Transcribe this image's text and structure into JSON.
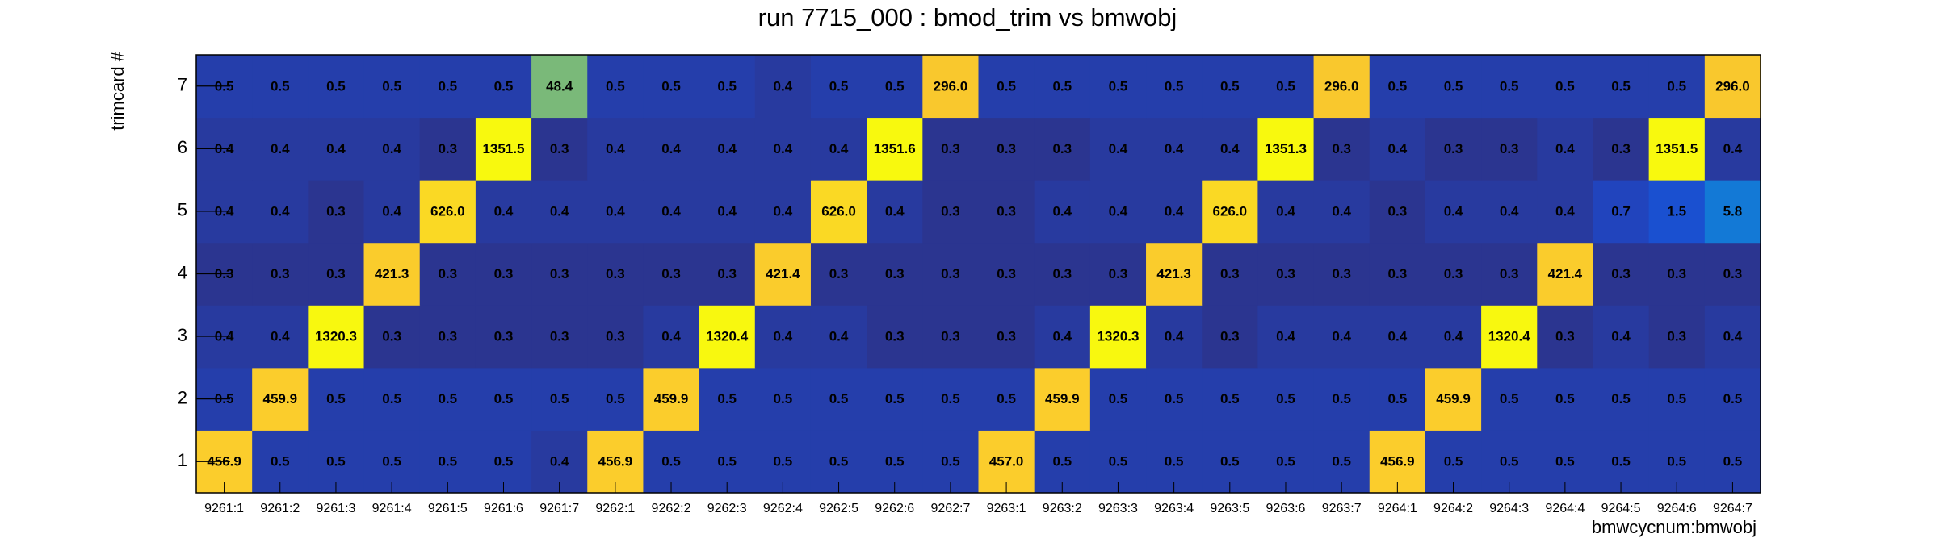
{
  "chart_data": {
    "type": "heatmap",
    "title": "run 7715_000 : bmod_trim vs bmwobj",
    "x_label": "bmwcycnum:bmwobj",
    "y_label": "trimcard #",
    "categories": [
      "9261:1",
      "9261:2",
      "9261:3",
      "9261:4",
      "9261:5",
      "9261:6",
      "9261:7",
      "9262:1",
      "9262:2",
      "9262:3",
      "9262:4",
      "9262:5",
      "9262:6",
      "9262:7",
      "9263:1",
      "9263:2",
      "9263:3",
      "9263:4",
      "9263:5",
      "9263:6",
      "9263:7",
      "9264:1",
      "9264:2",
      "9264:3",
      "9264:4",
      "9264:5",
      "9264:6",
      "9264:7"
    ],
    "y_categories": [
      "1",
      "2",
      "3",
      "4",
      "5",
      "6",
      "7"
    ],
    "values": [
      [
        456.9,
        0.5,
        0.5,
        0.5,
        0.5,
        0.5,
        0.4,
        456.9,
        0.5,
        0.5,
        0.5,
        0.5,
        0.5,
        0.5,
        457,
        0.5,
        0.5,
        0.5,
        0.5,
        0.5,
        0.5,
        456.9,
        0.5,
        0.5,
        0.5,
        0.5,
        0.5,
        0.5
      ],
      [
        0.5,
        459.9,
        0.5,
        0.5,
        0.5,
        0.5,
        0.5,
        0.5,
        459.9,
        0.5,
        0.5,
        0.5,
        0.5,
        0.5,
        0.5,
        459.9,
        0.5,
        0.5,
        0.5,
        0.5,
        0.5,
        0.5,
        459.9,
        0.5,
        0.5,
        0.5,
        0.5,
        0.5
      ],
      [
        0.4,
        0.4,
        1320.3,
        0.3,
        0.3,
        0.3,
        0.3,
        0.3,
        0.4,
        1320.4,
        0.4,
        0.4,
        0.3,
        0.3,
        0.3,
        0.4,
        1320.3,
        0.4,
        0.3,
        0.4,
        0.4,
        0.4,
        0.4,
        1320.4,
        0.3,
        0.4,
        0.3,
        0.4
      ],
      [
        0.3,
        0.3,
        0.3,
        421.3,
        0.3,
        0.3,
        0.3,
        0.3,
        0.3,
        0.3,
        421.4,
        0.3,
        0.3,
        0.3,
        0.3,
        0.3,
        0.3,
        421.3,
        0.3,
        0.3,
        0.3,
        0.3,
        0.3,
        0.3,
        421.4,
        0.3,
        0.3,
        0.3
      ],
      [
        0.4,
        0.4,
        0.3,
        0.4,
        626,
        0.4,
        0.4,
        0.4,
        0.4,
        0.4,
        0.4,
        626,
        0.4,
        0.3,
        0.3,
        0.4,
        0.4,
        0.4,
        626,
        0.4,
        0.4,
        0.3,
        0.4,
        0.4,
        0.4,
        0.7,
        1.5,
        5.8
      ],
      [
        0.4,
        0.4,
        0.4,
        0.4,
        0.3,
        1351.5,
        0.3,
        0.4,
        0.4,
        0.4,
        0.4,
        0.4,
        1351.6,
        0.3,
        0.3,
        0.3,
        0.4,
        0.4,
        0.4,
        1351.3,
        0.3,
        0.4,
        0.3,
        0.3,
        0.4,
        0.3,
        1351.5,
        0.4
      ],
      [
        0.5,
        0.5,
        0.5,
        0.5,
        0.5,
        0.5,
        48.4,
        0.5,
        0.5,
        0.5,
        0.4,
        0.5,
        0.5,
        296,
        0.5,
        0.5,
        0.5,
        0.5,
        0.5,
        0.5,
        296,
        0.5,
        0.5,
        0.5,
        0.5,
        0.5,
        0.5,
        296
      ]
    ],
    "value_labels": [
      [
        "456.9",
        "0.5",
        "0.5",
        "0.5",
        "0.5",
        "0.5",
        "0.4",
        "456.9",
        "0.5",
        "0.5",
        "0.5",
        "0.5",
        "0.5",
        "0.5",
        "457.0",
        "0.5",
        "0.5",
        "0.5",
        "0.5",
        "0.5",
        "0.5",
        "456.9",
        "0.5",
        "0.5",
        "0.5",
        "0.5",
        "0.5",
        "0.5"
      ],
      [
        "0.5",
        "459.9",
        "0.5",
        "0.5",
        "0.5",
        "0.5",
        "0.5",
        "0.5",
        "459.9",
        "0.5",
        "0.5",
        "0.5",
        "0.5",
        "0.5",
        "0.5",
        "459.9",
        "0.5",
        "0.5",
        "0.5",
        "0.5",
        "0.5",
        "0.5",
        "459.9",
        "0.5",
        "0.5",
        "0.5",
        "0.5",
        "0.5"
      ],
      [
        "0.4",
        "0.4",
        "1320.3",
        "0.3",
        "0.3",
        "0.3",
        "0.3",
        "0.3",
        "0.4",
        "1320.4",
        "0.4",
        "0.4",
        "0.3",
        "0.3",
        "0.3",
        "0.4",
        "1320.3",
        "0.4",
        "0.3",
        "0.4",
        "0.4",
        "0.4",
        "0.4",
        "1320.4",
        "0.3",
        "0.4",
        "0.3",
        "0.4"
      ],
      [
        "0.3",
        "0.3",
        "0.3",
        "421.3",
        "0.3",
        "0.3",
        "0.3",
        "0.3",
        "0.3",
        "0.3",
        "421.4",
        "0.3",
        "0.3",
        "0.3",
        "0.3",
        "0.3",
        "0.3",
        "421.3",
        "0.3",
        "0.3",
        "0.3",
        "0.3",
        "0.3",
        "0.3",
        "421.4",
        "0.3",
        "0.3",
        "0.3"
      ],
      [
        "0.4",
        "0.4",
        "0.3",
        "0.4",
        "626.0",
        "0.4",
        "0.4",
        "0.4",
        "0.4",
        "0.4",
        "0.4",
        "626.0",
        "0.4",
        "0.3",
        "0.3",
        "0.4",
        "0.4",
        "0.4",
        "626.0",
        "0.4",
        "0.4",
        "0.3",
        "0.4",
        "0.4",
        "0.4",
        "0.7",
        "1.5",
        "5.8"
      ],
      [
        "0.4",
        "0.4",
        "0.4",
        "0.4",
        "0.3",
        "1351.5",
        "0.3",
        "0.4",
        "0.4",
        "0.4",
        "0.4",
        "0.4",
        "1351.6",
        "0.3",
        "0.3",
        "0.3",
        "0.4",
        "0.4",
        "0.4",
        "1351.3",
        "0.3",
        "0.4",
        "0.3",
        "0.3",
        "0.4",
        "0.3",
        "1351.5",
        "0.4"
      ],
      [
        "0.5",
        "0.5",
        "0.5",
        "0.5",
        "0.5",
        "0.5",
        "48.4",
        "0.5",
        "0.5",
        "0.5",
        "0.4",
        "0.5",
        "0.5",
        "296.0",
        "0.5",
        "0.5",
        "0.5",
        "0.5",
        "0.5",
        "0.5",
        "296.0",
        "0.5",
        "0.5",
        "0.5",
        "0.5",
        "0.5",
        "0.5",
        "296.0"
      ]
    ],
    "colors": [
      "#2b3590",
      "#1f48c8",
      "#1558d8",
      "#1380d6",
      "#10a6c6",
      "#8fbd6a",
      "#f6c12f",
      "#fbcd2c",
      "#f8f90e"
    ],
    "logz": true
  }
}
